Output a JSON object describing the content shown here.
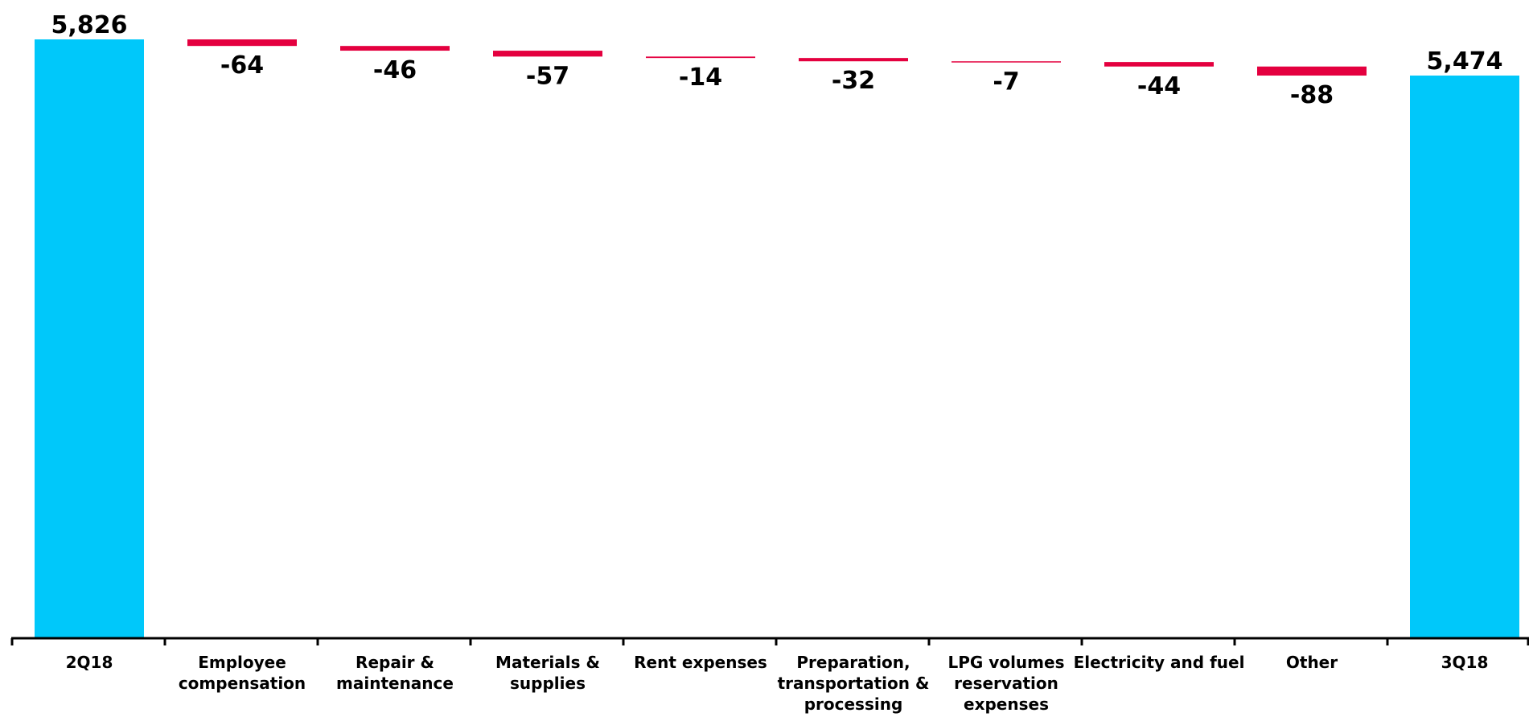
{
  "chart_data": {
    "type": "bar",
    "subtype": "waterfall",
    "title": "",
    "xlabel": "",
    "ylabel": "",
    "grid": false,
    "legend": "none",
    "categories": [
      "2Q18",
      "Employee compensation",
      "Repair & maintenance",
      "Materials & supplies",
      "Rent expenses",
      "Preparation, transportation & processing",
      "LPG volumes reservation expenses",
      "Electricity and fuel",
      "Other",
      "3Q18"
    ],
    "category_lines": [
      [
        "2Q18"
      ],
      [
        "Employee",
        "compensation"
      ],
      [
        "Repair &",
        "maintenance"
      ],
      [
        "Materials &",
        "supplies"
      ],
      [
        "Rent expenses"
      ],
      [
        "Preparation,",
        "transportation &",
        "processing"
      ],
      [
        "LPG volumes",
        "reservation",
        "expenses"
      ],
      [
        "Electricity and fuel"
      ],
      [
        "Other"
      ],
      [
        "3Q18"
      ]
    ],
    "values": [
      5826,
      -64,
      -46,
      -57,
      -14,
      -32,
      -7,
      -44,
      -88,
      5474
    ],
    "labels": [
      "5,826",
      "-64",
      "-46",
      "-57",
      "-14",
      "-32",
      "-7",
      "-44",
      "-88",
      "5,474"
    ],
    "kinds": [
      "total",
      "delta",
      "delta",
      "delta",
      "delta",
      "delta",
      "delta",
      "delta",
      "delta",
      "total"
    ],
    "colors": {
      "total": "#00C8FA",
      "decrease": "#E4003F",
      "axis": "#000000",
      "text": "#000000"
    }
  }
}
